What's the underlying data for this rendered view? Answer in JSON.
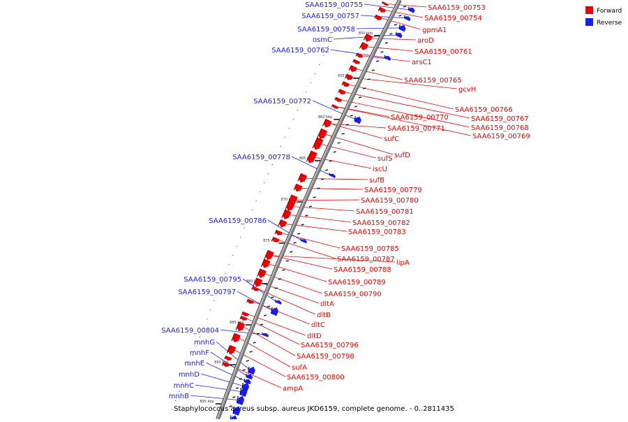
{
  "caption": "Staphylococcus aureus subsp. aureus JKD6159, complete genome. - 0..2811435",
  "colors": {
    "forward": "#ee0000",
    "reverse": "#1a1aff",
    "backbone": "#8a8a8a"
  },
  "legend": [
    {
      "label": "Forward",
      "color": "#ee0000"
    },
    {
      "label": "Reverse",
      "color": "#1a1aff"
    }
  ],
  "ticks": [
    "850 kbp",
    "855 kbp",
    "860 kbp",
    "865 kbp",
    "870 kbp",
    "875 kbp",
    "880 kbp",
    "885 kbp",
    "890 kbp",
    "895 kbp"
  ],
  "forward_labels": [
    "SAA6159_00753",
    "SAA6159_00754",
    "gpmA1",
    "aroD",
    "SAA6159_00761",
    "arsC1",
    "SAA6159_00765",
    "gcvH",
    "SAA6159_00766",
    "SAA6159_00767",
    "SAA6159_00768",
    "SAA6159_00769",
    "SAA6159_00770",
    "SAA6159_00771",
    "sufC",
    "sufD",
    "sufS",
    "iscU",
    "sufB",
    "SAA6159_00779",
    "SAA6159_00780",
    "SAA6159_00781",
    "SAA6159_00782",
    "SAA6159_00783",
    "SAA6159_00785",
    "SAA6159_00787",
    "lipA",
    "SAA6159_00788",
    "SAA6159_00789",
    "SAA6159_00790",
    "dltA",
    "dltB",
    "dltC",
    "dltD",
    "SAA6159_00796",
    "SAA6159_00798",
    "sufA",
    "SAA6159_00800",
    "ampA"
  ],
  "reverse_labels": [
    "SAA6159_00755",
    "SAA6159_00757",
    "SAA6159_00758",
    "osmC",
    "SAA6159_00762",
    "SAA6159_00772",
    "SAA6159_00778",
    "SAA6159_00786",
    "SAA6159_00795",
    "SAA6159_00797",
    "SAA6159_00804",
    "mnhG",
    "mnhF",
    "mnhE",
    "mnhD",
    "mnhC",
    "mnhB"
  ]
}
